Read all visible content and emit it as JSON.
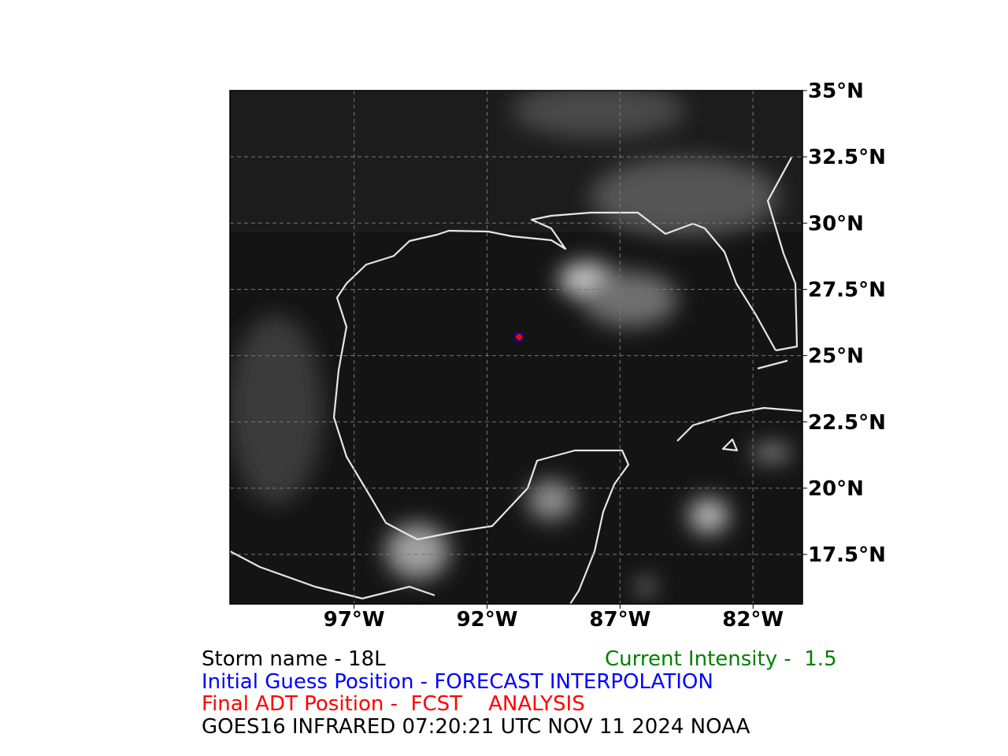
{
  "map": {
    "xlim": [
      -101.67,
      -80.14
    ],
    "ylim": [
      15.63,
      35
    ],
    "xticks": [
      {
        "value": -97,
        "label": "97°W"
      },
      {
        "value": -92,
        "label": "92°W"
      },
      {
        "value": -87,
        "label": "87°W"
      },
      {
        "value": -82,
        "label": "82°W"
      }
    ],
    "yticks": [
      {
        "value": 35,
        "label": "35°N"
      },
      {
        "value": 32.5,
        "label": "32.5°N"
      },
      {
        "value": 30,
        "label": "30°N"
      },
      {
        "value": 27.5,
        "label": "27.5°N"
      },
      {
        "value": 25,
        "label": "25°N"
      },
      {
        "value": 22.5,
        "label": "22.5°N"
      },
      {
        "value": 20,
        "label": "20°N"
      },
      {
        "value": 17.5,
        "label": "17.5°N"
      }
    ],
    "initial_guess": {
      "lon": -90.8,
      "lat": 25.7,
      "color": "#0000ff"
    },
    "final_position": {
      "lon": -90.8,
      "lat": 25.7,
      "color": "#ff0000"
    }
  },
  "caption": {
    "storm_name": {
      "text": "Storm name - 18L",
      "color": "#000000"
    },
    "intensity": {
      "text": "Current Intensity -  1.5",
      "color": "#008000"
    },
    "initial_guess": {
      "text": "Initial Guess Position - FORECAST INTERPOLATION",
      "color": "#0000ff"
    },
    "final_position": {
      "text": "Final ADT Position -  FCST    ANALYSIS",
      "color": "#ff0000"
    },
    "source": {
      "text": "GOES16 INFRARED 07:20:21 UTC NOV 11 2024 NOAA",
      "color": "#000000"
    }
  }
}
